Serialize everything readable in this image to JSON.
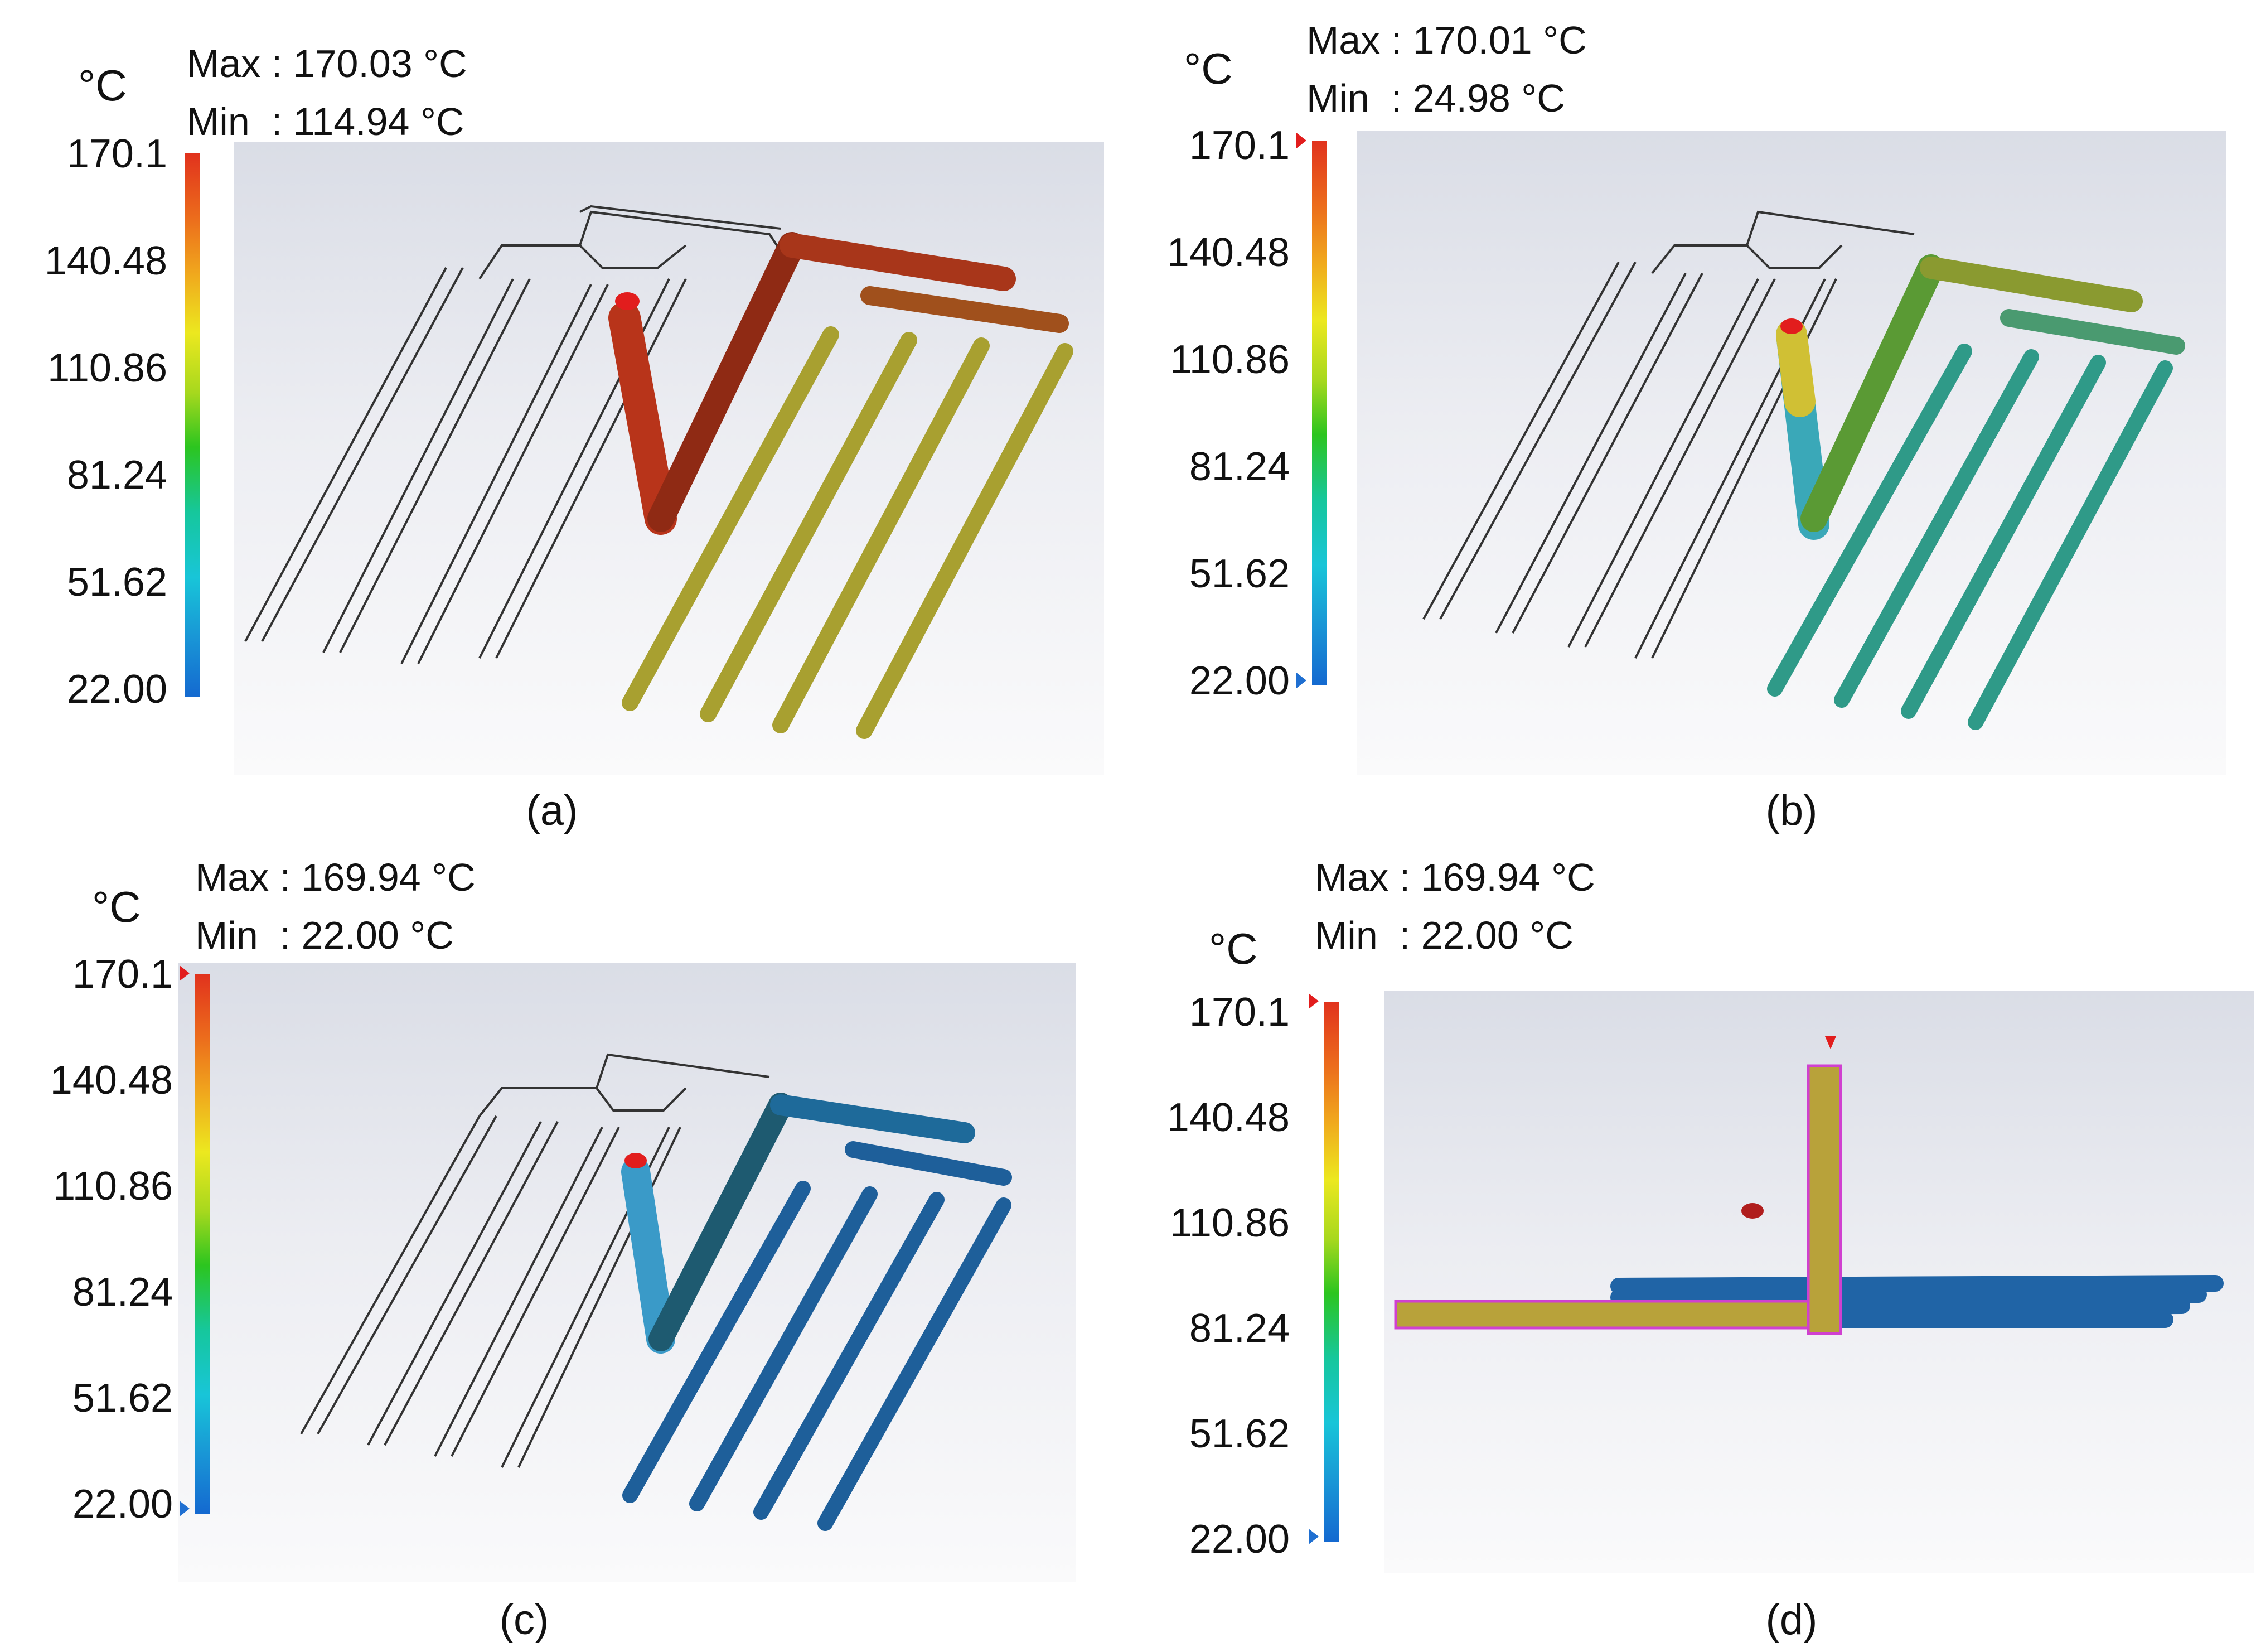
{
  "unit": "°C",
  "colorbar_ticks": [
    "170.1",
    "140.48",
    "110.86",
    "81.24",
    "51.62",
    "22.00"
  ],
  "colors": {
    "panel_a_filled": "#b8341a",
    "panel_a_runner": "#a8a030",
    "panel_b_runner": "#2f9a88",
    "panel_c_runner": "#1e5f9a",
    "panel_d_runner": "#2064a6",
    "panel_d_sprue": "#b8a23a",
    "inlet_marker": "#e21d1d"
  },
  "panels": [
    {
      "label": "(a)",
      "max": "Max : 170.03 °C",
      "min": "Min  : 114.94 °C"
    },
    {
      "label": "(b)",
      "max": "Max : 170.01 °C",
      "min": "Min  : 24.98 °C"
    },
    {
      "label": "(c)",
      "max": "Max : 169.94 °C",
      "min": "Min  : 22.00 °C"
    },
    {
      "label": "(d)",
      "max": "Max : 169.94 °C",
      "min": "Min  : 22.00 °C"
    }
  ]
}
